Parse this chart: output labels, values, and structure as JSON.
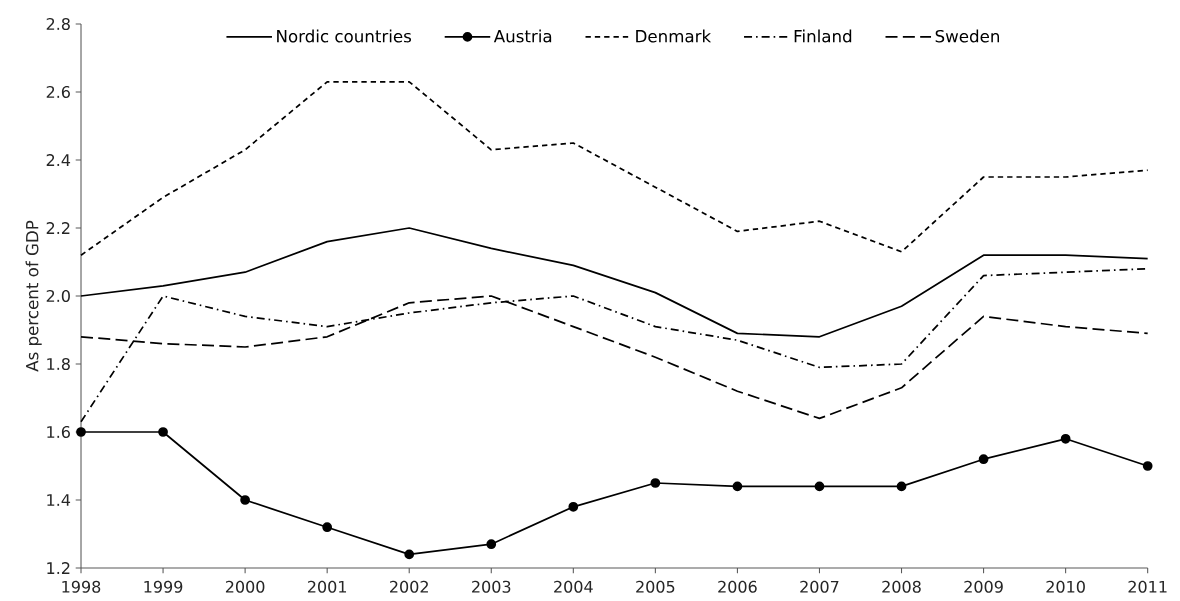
{
  "chart_data": {
    "type": "line",
    "ylabel": "As percent of GDP",
    "x": [
      1998,
      1999,
      2000,
      2001,
      2002,
      2003,
      2004,
      2005,
      2006,
      2007,
      2008,
      2009,
      2010,
      2011
    ],
    "xlim": [
      1998,
      2011
    ],
    "xticks": [
      1998,
      1999,
      2000,
      2001,
      2002,
      2003,
      2004,
      2005,
      2006,
      2007,
      2008,
      2009,
      2010,
      2011
    ],
    "ylim": [
      1.2,
      2.8
    ],
    "yticks": [
      1.2,
      1.4,
      1.6,
      1.8,
      {
        "value": 2.0,
        "label": "2.0"
      },
      2.2,
      2.4,
      2.6,
      2.8
    ],
    "grid": false,
    "legend": "top",
    "series": [
      {
        "name": "Nordic countries",
        "color": "#000000",
        "line_style": "solid",
        "marker": "none",
        "values": [
          2.0,
          2.03,
          2.07,
          2.16,
          2.2,
          2.14,
          2.09,
          2.01,
          1.89,
          1.88,
          1.97,
          2.12,
          2.12,
          2.11
        ]
      },
      {
        "name": "Austria",
        "color": "#000000",
        "line_style": "solid",
        "marker": "circle",
        "values": [
          1.6,
          1.6,
          1.4,
          1.32,
          1.24,
          1.27,
          1.38,
          1.45,
          1.44,
          1.44,
          1.44,
          1.52,
          1.58,
          1.5
        ]
      },
      {
        "name": "Denmark",
        "color": "#000000",
        "line_style": "dashed",
        "marker": "none",
        "values": [
          2.12,
          2.29,
          2.43,
          2.63,
          2.63,
          2.43,
          2.45,
          2.32,
          2.19,
          2.22,
          2.13,
          2.35,
          2.35,
          2.37
        ]
      },
      {
        "name": "Finland",
        "color": "#000000",
        "line_style": "dashdot",
        "marker": "none",
        "values": [
          1.63,
          2.0,
          1.94,
          1.91,
          1.95,
          1.98,
          2.0,
          1.91,
          1.87,
          1.79,
          1.8,
          2.06,
          2.07,
          2.08
        ]
      },
      {
        "name": "Sweden",
        "color": "#000000",
        "line_style": "longdashed",
        "marker": "none",
        "values": [
          1.88,
          1.86,
          1.85,
          1.88,
          1.98,
          2.0,
          1.91,
          1.82,
          1.72,
          1.64,
          1.73,
          1.94,
          1.91,
          1.89
        ]
      }
    ]
  }
}
